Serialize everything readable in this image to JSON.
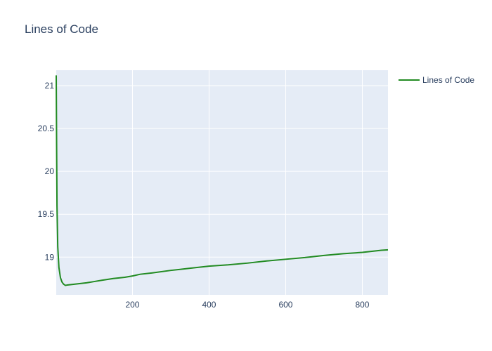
{
  "chart_data": {
    "type": "line",
    "title": "Lines of Code",
    "xlabel": "",
    "ylabel": "",
    "xlim": [
      1,
      867
    ],
    "ylim": [
      18.56,
      21.18
    ],
    "x_ticks": [
      200,
      400,
      600,
      800
    ],
    "y_ticks": [
      19,
      19.5,
      20,
      20.5,
      21
    ],
    "grid": true,
    "legend_position": "top-right",
    "colors": {
      "plot_bg": "#e5ecf6",
      "grid": "#ffffff",
      "text": "#2a3f5f"
    },
    "series": [
      {
        "name": "Lines of Code",
        "color": "#228b22",
        "x": [
          1,
          2,
          3,
          5,
          8,
          12,
          16,
          20,
          25,
          30,
          40,
          50,
          60,
          80,
          100,
          120,
          150,
          180,
          200,
          220,
          250,
          300,
          350,
          400,
          450,
          500,
          550,
          600,
          650,
          700,
          750,
          800,
          850,
          867
        ],
        "y": [
          21.12,
          20.3,
          19.6,
          19.12,
          18.88,
          18.76,
          18.71,
          18.685,
          18.67,
          18.675,
          18.68,
          18.685,
          18.69,
          18.7,
          18.715,
          18.73,
          18.75,
          18.765,
          18.78,
          18.8,
          18.815,
          18.845,
          18.87,
          18.895,
          18.91,
          18.93,
          18.955,
          18.975,
          18.995,
          19.02,
          19.04,
          19.055,
          19.08,
          19.085
        ]
      }
    ]
  }
}
